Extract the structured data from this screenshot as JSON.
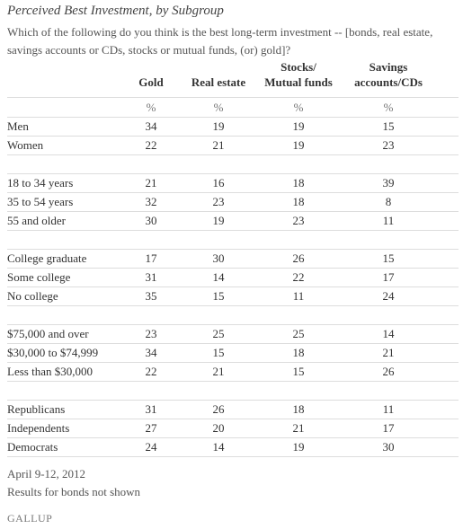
{
  "title": "Perceived Best Investment, by Subgroup",
  "subtitle": "Which of the following do you think is the best long-term investment -- [bonds, real estate, savings accounts or CDs, stocks or mutual funds, (or) gold]?",
  "table": {
    "columns": [
      [
        "Gold"
      ],
      [
        "Real estate"
      ],
      [
        "Stocks/",
        "Mutual funds"
      ],
      [
        "Savings",
        "accounts/CDs"
      ]
    ],
    "units": [
      "%",
      "%",
      "%",
      "%"
    ],
    "groups": [
      [
        {
          "label": "Men",
          "values": [
            34,
            19,
            19,
            15
          ]
        },
        {
          "label": "Women",
          "values": [
            22,
            21,
            19,
            23
          ]
        }
      ],
      [
        {
          "label": "18 to 34 years",
          "values": [
            21,
            16,
            18,
            39
          ]
        },
        {
          "label": "35 to 54 years",
          "values": [
            32,
            23,
            18,
            8
          ]
        },
        {
          "label": "55 and older",
          "values": [
            30,
            19,
            23,
            11
          ]
        }
      ],
      [
        {
          "label": "College graduate",
          "values": [
            17,
            30,
            26,
            15
          ]
        },
        {
          "label": "Some college",
          "values": [
            31,
            14,
            22,
            17
          ]
        },
        {
          "label": "No college",
          "values": [
            35,
            15,
            11,
            24
          ]
        }
      ],
      [
        {
          "label": "$75,000 and over",
          "values": [
            23,
            25,
            25,
            14
          ]
        },
        {
          "label": "$30,000 to $74,999",
          "values": [
            34,
            15,
            18,
            21
          ]
        },
        {
          "label": "Less than $30,000",
          "values": [
            22,
            21,
            15,
            26
          ]
        }
      ],
      [
        {
          "label": "Republicans",
          "values": [
            31,
            26,
            18,
            11
          ]
        },
        {
          "label": "Independents",
          "values": [
            27,
            20,
            21,
            17
          ]
        },
        {
          "label": "Democrats",
          "values": [
            24,
            14,
            19,
            30
          ]
        }
      ]
    ]
  },
  "footnotes": [
    "April 9-12, 2012",
    "Results for bonds not shown"
  ],
  "brand": "GALLUP"
}
